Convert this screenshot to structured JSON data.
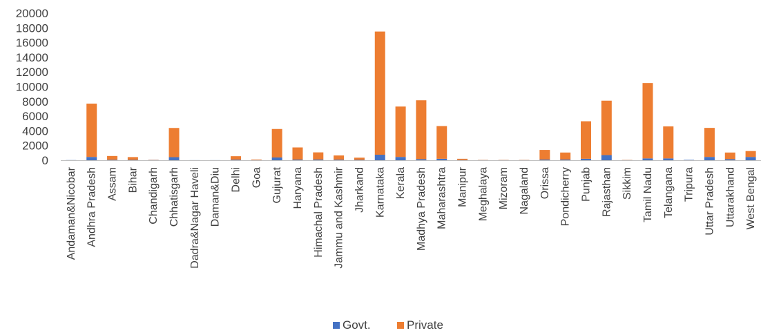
{
  "chart_data": {
    "type": "bar",
    "stacked": true,
    "categories": [
      "Andaman&Nicobar",
      "Andhra Pradesh",
      "Assam",
      "Bihar",
      "Chandigarh",
      "Chhatisgarh",
      "Dadra&Nagar Haveli",
      "Daman&Diu",
      "Delhi",
      "Goa",
      "Gujurat",
      "Haryana",
      "Himachal Pradesh",
      "Jammu and Kashmir",
      "Jharkand",
      "Karnataka",
      "Kerala",
      "Madhya Pradesh",
      "Maharashtra",
      "Manipur",
      "Meghalaya",
      "Mizoram",
      "Nagaland",
      "Orissa",
      "Pondicherry",
      "Punjab",
      "Rajasthan",
      "Sikkim",
      "Tamil Nadu",
      "Telangana",
      "Tripura",
      "Uttar Pradesh",
      "Uttarakhand",
      "West Bengal"
    ],
    "series": [
      {
        "name": "Govt.",
        "color": "#4472C4",
        "values": [
          20,
          450,
          60,
          50,
          30,
          420,
          10,
          10,
          80,
          20,
          380,
          90,
          100,
          80,
          50,
          750,
          450,
          150,
          200,
          30,
          20,
          20,
          20,
          100,
          100,
          200,
          700,
          20,
          250,
          250,
          50,
          450,
          150,
          450
        ]
      },
      {
        "name": "Private",
        "color": "#ED7D31",
        "values": [
          0,
          7250,
          520,
          380,
          30,
          3970,
          0,
          0,
          470,
          80,
          3870,
          1650,
          970,
          570,
          300,
          16750,
          6850,
          8000,
          4450,
          170,
          30,
          30,
          30,
          1300,
          950,
          5100,
          7400,
          30,
          10250,
          4350,
          0,
          3950,
          900,
          800
        ]
      }
    ],
    "ylim": [
      0,
      20000
    ],
    "yticks": [
      0,
      2000,
      4000,
      6000,
      8000,
      10000,
      12000,
      14000,
      16000,
      18000,
      20000
    ],
    "grid": false,
    "legend": "bottom-center",
    "title": "",
    "xlabel": "",
    "ylabel": ""
  }
}
